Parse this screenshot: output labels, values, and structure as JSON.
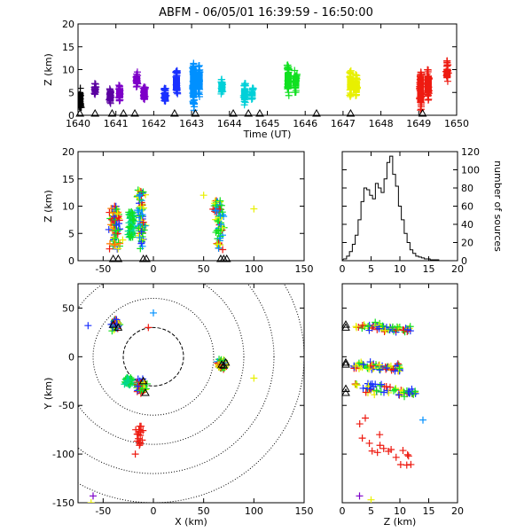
{
  "title": "ABFM - 06/05/01 16:39:59 - 16:50:00",
  "colors": {
    "purple": "#5a00a0",
    "violet": "#7d00c8",
    "blue": "#1a30ff",
    "azure": "#0090ff",
    "cyan": "#00d0d8",
    "teal": "#00d890",
    "green": "#10e020",
    "yellow": "#e8f000",
    "orange": "#ff7a00",
    "red": "#ee1a10",
    "black": "#000000"
  },
  "chart_data": [
    {
      "id": "time-height",
      "type": "scatter",
      "xlabel": "Time (UT)",
      "ylabel": "Z (km)",
      "xlim": [
        1640,
        1650
      ],
      "ylim": [
        0,
        20
      ],
      "xticks": [
        1640,
        1641,
        1642,
        1643,
        1644,
        1645,
        1646,
        1647,
        1648,
        1649,
        1650
      ],
      "yticks": [
        0,
        5,
        10,
        15,
        20
      ],
      "clusters": [
        {
          "x": 1640.05,
          "z": [
            1.5,
            6
          ],
          "color": "black"
        },
        {
          "x": 1640.45,
          "z": [
            4.5,
            7
          ],
          "color": "purple"
        },
        {
          "x": 1640.85,
          "z": [
            2.5,
            6
          ],
          "color": "purple"
        },
        {
          "x": 1641.1,
          "z": [
            3,
            7
          ],
          "color": "violet"
        },
        {
          "x": 1641.55,
          "z": [
            6,
            9.5
          ],
          "color": "violet"
        },
        {
          "x": 1641.75,
          "z": [
            2.5,
            7
          ],
          "color": "violet"
        },
        {
          "x": 1642.3,
          "z": [
            2.5,
            6
          ],
          "color": "blue"
        },
        {
          "x": 1642.6,
          "z": [
            4,
            10
          ],
          "color": "blue"
        },
        {
          "x": 1643.05,
          "z": [
            1,
            12
          ],
          "color": "azure"
        },
        {
          "x": 1643.2,
          "z": [
            4,
            11
          ],
          "color": "azure"
        },
        {
          "x": 1643.8,
          "z": [
            4.5,
            8
          ],
          "color": "cyan"
        },
        {
          "x": 1644.4,
          "z": [
            2,
            7
          ],
          "color": "cyan"
        },
        {
          "x": 1644.6,
          "z": [
            3.5,
            6
          ],
          "color": "cyan"
        },
        {
          "x": 1645.55,
          "z": [
            4,
            11
          ],
          "color": "green"
        },
        {
          "x": 1645.75,
          "z": [
            5,
            10
          ],
          "color": "green"
        },
        {
          "x": 1647.2,
          "z": [
            4,
            10
          ],
          "color": "yellow"
        },
        {
          "x": 1647.35,
          "z": [
            3.5,
            9
          ],
          "color": "yellow"
        },
        {
          "x": 1649.05,
          "z": [
            0.5,
            10
          ],
          "color": "red"
        },
        {
          "x": 1649.25,
          "z": [
            3,
            10
          ],
          "color": "red"
        },
        {
          "x": 1649.75,
          "z": [
            7,
            12
          ],
          "color": "red"
        }
      ],
      "stations_x": [
        1640.05,
        1640.45,
        1640.9,
        1641.2,
        1641.5,
        1642.55,
        1643.1,
        1644.1,
        1644.5,
        1644.8,
        1646.3,
        1647.2,
        1649.1
      ]
    },
    {
      "id": "xz",
      "type": "scatter",
      "xlabel": "",
      "ylabel": "Z (km)",
      "xlim": [
        -75,
        150
      ],
      "ylim": [
        0,
        20
      ],
      "xticks": [
        -50,
        0,
        50,
        100,
        150
      ],
      "yticks": [
        0,
        5,
        10,
        15,
        20
      ],
      "clusters": [
        {
          "x": -38,
          "dx": 8,
          "z": [
            2,
            10
          ],
          "colors": [
            "red",
            "green",
            "yellow",
            "blue",
            "orange"
          ]
        },
        {
          "x": -12,
          "dx": 6,
          "z": [
            2,
            13
          ],
          "colors": [
            "red",
            "green",
            "blue",
            "azure",
            "yellow"
          ]
        },
        {
          "x": -22,
          "dx": 4,
          "z": [
            4,
            9
          ],
          "colors": [
            "green",
            "teal"
          ]
        },
        {
          "x": 65,
          "dx": 7,
          "z": [
            2,
            11
          ],
          "colors": [
            "yellow",
            "azure",
            "green",
            "red"
          ]
        }
      ],
      "stations_x": [
        -40,
        -35,
        -10,
        -7,
        67,
        70,
        73
      ]
    },
    {
      "id": "z-histogram",
      "type": "bar",
      "xlabel": "",
      "ylabel": "number of sources",
      "xlim": [
        0,
        20
      ],
      "ylim": [
        0,
        120
      ],
      "xticks": [
        0,
        5,
        10,
        15,
        20
      ],
      "yticks": [
        0,
        20,
        40,
        60,
        80,
        100,
        120
      ],
      "bin_width": 0.5,
      "x": [
        0.5,
        1,
        1.5,
        2,
        2.5,
        3,
        3.5,
        4,
        4.5,
        5,
        5.5,
        6,
        6.5,
        7,
        7.5,
        8,
        8.5,
        9,
        9.5,
        10,
        10.5,
        11,
        11.5,
        12,
        12.5,
        13,
        13.5,
        14,
        14.5,
        15,
        15.5,
        16,
        16.5,
        17,
        17.5,
        18
      ],
      "values": [
        2,
        5,
        10,
        18,
        28,
        45,
        65,
        80,
        78,
        72,
        68,
        85,
        80,
        75,
        90,
        108,
        115,
        95,
        82,
        60,
        45,
        30,
        20,
        12,
        8,
        5,
        4,
        3,
        2,
        2,
        1,
        1,
        1,
        0,
        0,
        0
      ]
    },
    {
      "id": "plan-view",
      "type": "scatter",
      "xlabel": "X (km)",
      "ylabel": "Y (km)",
      "xlim": [
        -75,
        150
      ],
      "ylim": [
        -150,
        75
      ],
      "xticks": [
        -50,
        0,
        50,
        100,
        150
      ],
      "yticks": [
        -150,
        -100,
        -50,
        0,
        50
      ],
      "range_rings_km": [
        30,
        60,
        90,
        120,
        150
      ],
      "clusters": [
        {
          "x": -38,
          "y": 32,
          "r": 6,
          "colors": [
            "red",
            "green",
            "blue",
            "yellow"
          ]
        },
        {
          "x": -12,
          "y": -30,
          "r": 8,
          "colors": [
            "red",
            "green",
            "blue",
            "yellow"
          ]
        },
        {
          "x": -25,
          "y": -25,
          "r": 5,
          "colors": [
            "green",
            "teal"
          ]
        },
        {
          "x": 68,
          "y": -8,
          "r": 6,
          "colors": [
            "yellow",
            "green",
            "azure",
            "red"
          ]
        },
        {
          "x": -14,
          "y": -80,
          "r": 8,
          "colors": [
            "red"
          ]
        }
      ],
      "extra_points": [
        {
          "x": 0,
          "y": 45,
          "color": "azure"
        },
        {
          "x": -65,
          "y": 32,
          "color": "blue"
        },
        {
          "x": -5,
          "y": 30,
          "color": "red"
        },
        {
          "x": 100,
          "y": -22,
          "color": "yellow"
        },
        {
          "x": -60,
          "y": -143,
          "color": "violet"
        },
        {
          "x": -62,
          "y": -150,
          "color": "yellow"
        },
        {
          "x": -18,
          "y": -100,
          "color": "red"
        }
      ],
      "stations": [
        [
          -40,
          33
        ],
        [
          -35,
          30
        ],
        [
          -10,
          -25
        ],
        [
          -8,
          -37
        ],
        [
          68,
          -8
        ],
        [
          72,
          -6
        ],
        [
          70,
          -9
        ]
      ]
    },
    {
      "id": "zy",
      "type": "scatter",
      "xlabel": "Z (km)",
      "ylabel": "",
      "xlim": [
        0,
        20
      ],
      "ylim": [
        -150,
        75
      ],
      "xticks": [
        0,
        5,
        10,
        15,
        20
      ],
      "clusters": [
        {
          "z": [
            2,
            12
          ],
          "y": 33,
          "dy": 5,
          "colors": [
            "red",
            "green",
            "blue",
            "yellow"
          ]
        },
        {
          "z": [
            2,
            10
          ],
          "y": -8,
          "dy": 6,
          "colors": [
            "yellow",
            "blue",
            "green",
            "red"
          ]
        },
        {
          "z": [
            2,
            13
          ],
          "y": -30,
          "dy": 8,
          "colors": [
            "red",
            "green",
            "blue",
            "yellow"
          ]
        },
        {
          "z": [
            3,
            12
          ],
          "y": -80,
          "dy": 15,
          "colors": [
            "red"
          ]
        }
      ],
      "extra_points": [
        {
          "z": 14,
          "y": -65,
          "color": "azure"
        },
        {
          "z": 11.5,
          "y": -102,
          "color": "red"
        },
        {
          "z": 3,
          "y": -143,
          "color": "violet"
        },
        {
          "z": 5,
          "y": -147,
          "color": "yellow"
        },
        {
          "z": 4,
          "y": -63,
          "color": "red"
        }
      ],
      "stations_y": [
        33,
        30,
        -8,
        -6,
        -37,
        -33
      ]
    }
  ]
}
